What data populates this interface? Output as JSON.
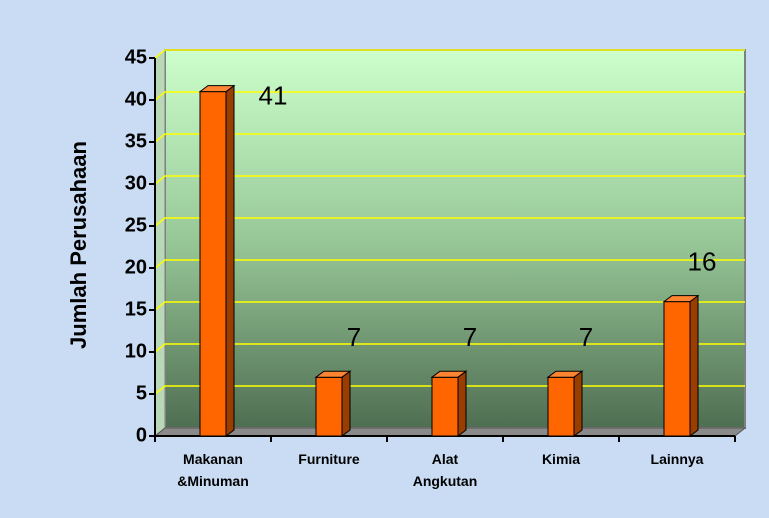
{
  "chart_data": {
    "type": "bar",
    "y_label": "Jumlah Perusahaan",
    "categories": [
      "Makanan &Minuman",
      "Furniture",
      "Alat Angkutan",
      "Kimia",
      "Lainnya"
    ],
    "values": [
      41,
      7,
      7,
      7,
      16
    ],
    "color": "#ff6600",
    "ylim": [
      0,
      45
    ],
    "yticks": [
      0,
      5,
      10,
      15,
      20,
      25,
      30,
      35,
      40,
      45
    ],
    "grid": true
  }
}
